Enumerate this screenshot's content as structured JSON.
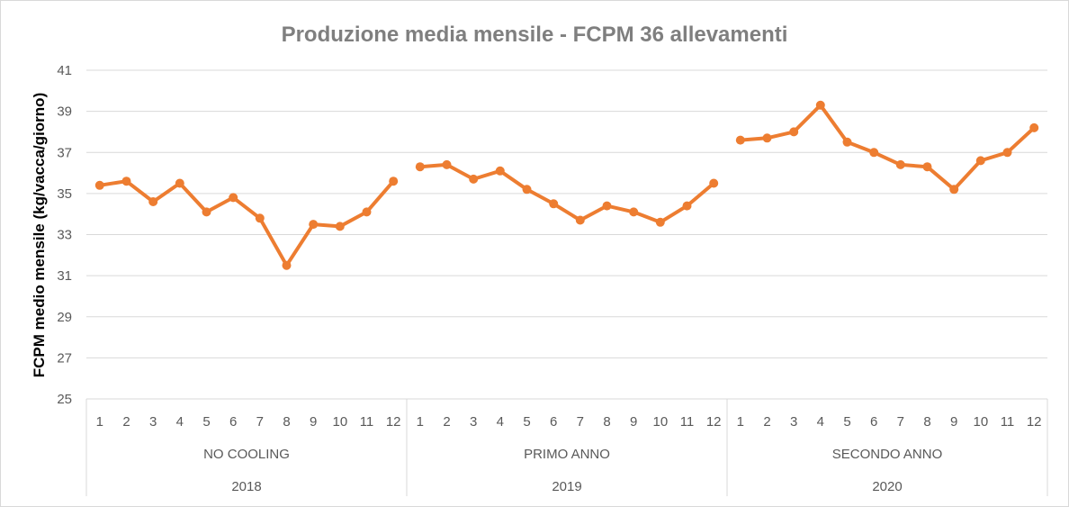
{
  "chart_data": {
    "type": "line",
    "title": "Produzione media mensile - FCPM 36 allevamenti",
    "xlabel": "",
    "ylabel": "FCPM medio mensile (kg/vacca/giorno)",
    "ylim": [
      25,
      41
    ],
    "yticks": [
      "25",
      "27",
      "29",
      "31",
      "33",
      "35",
      "37",
      "39",
      "41"
    ],
    "grid": true,
    "legend": "none",
    "line_color": "#ed7d31",
    "groups": [
      {
        "label": "NO COOLING",
        "year": "2018",
        "months": [
          "1",
          "2",
          "3",
          "4",
          "5",
          "6",
          "7",
          "8",
          "9",
          "10",
          "11",
          "12"
        ],
        "values": [
          35.4,
          35.6,
          34.6,
          35.5,
          34.1,
          34.8,
          33.8,
          31.5,
          33.5,
          33.4,
          34.1,
          35.6
        ]
      },
      {
        "label": "PRIMO ANNO",
        "year": "2019",
        "months": [
          "1",
          "2",
          "3",
          "4",
          "5",
          "6",
          "7",
          "8",
          "9",
          "10",
          "11",
          "12"
        ],
        "values": [
          36.3,
          36.4,
          35.7,
          36.1,
          35.2,
          34.5,
          33.7,
          34.4,
          34.1,
          33.6,
          34.4,
          35.5
        ]
      },
      {
        "label": "SECONDO ANNO",
        "year": "2020",
        "months": [
          "1",
          "2",
          "3",
          "4",
          "5",
          "6",
          "7",
          "8",
          "9",
          "10",
          "11",
          "12"
        ],
        "values": [
          37.6,
          37.7,
          38.0,
          39.3,
          37.5,
          37.0,
          36.4,
          36.3,
          35.2,
          36.6,
          37.0,
          38.2
        ]
      }
    ]
  }
}
